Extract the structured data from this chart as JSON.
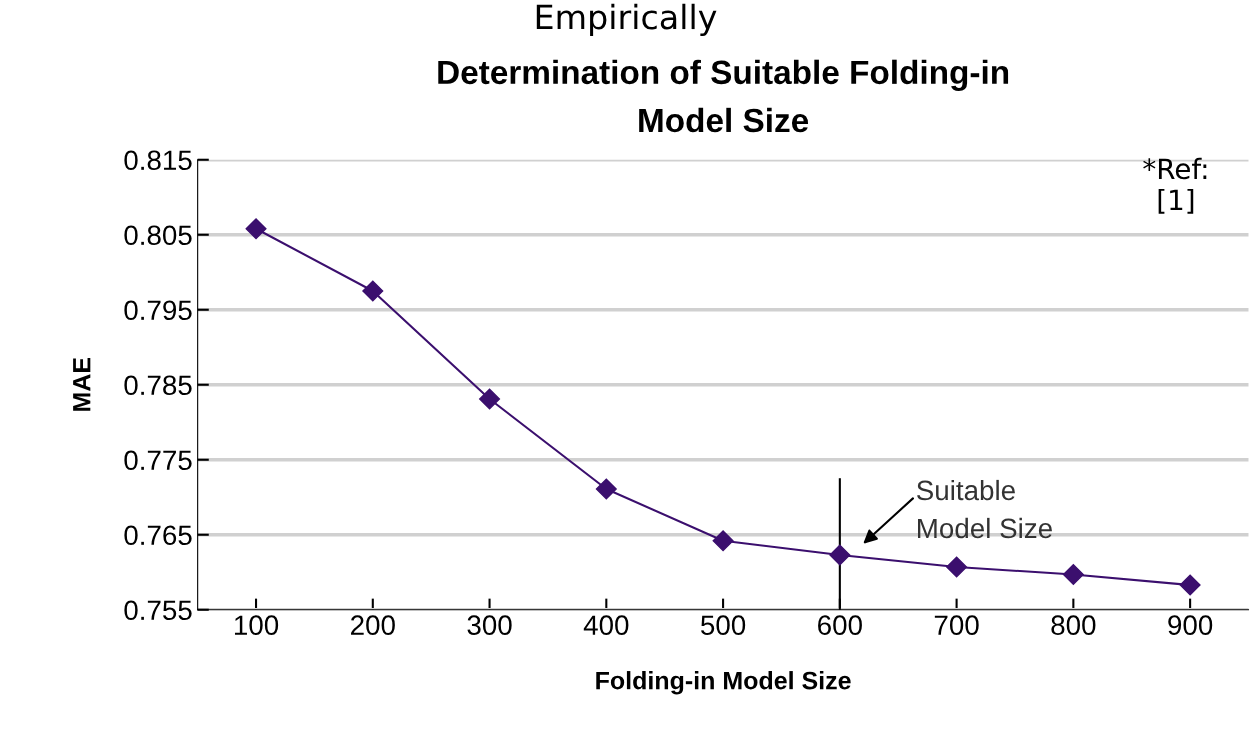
{
  "chart_data": {
    "type": "line",
    "title": "Determination of Suitable Folding-in\nModel Size",
    "xlabel": "Folding-in Model Size",
    "ylabel": "MAE",
    "categories": [
      "100",
      "200",
      "300",
      "400",
      "500",
      "600",
      "700",
      "800",
      "900"
    ],
    "series": [
      {
        "color": "#3b0f6e",
        "values": [
          0.8058,
          0.7975,
          0.7831,
          0.7711,
          0.7642,
          0.7623,
          0.7607,
          0.7597,
          0.7583
        ]
      }
    ],
    "ylim": [
      0.755,
      0.815
    ],
    "yticks": [
      0.755,
      0.765,
      0.775,
      0.785,
      0.795,
      0.805,
      0.815
    ],
    "grid": "y",
    "marker": "diamond",
    "ref_lines": [
      {
        "axis": "x",
        "value": "600",
        "color": "#000000"
      }
    ],
    "annotations": [
      "Empirically",
      {
        "text": "Suitable\nModel Size",
        "x": "600",
        "y": 0.7623
      },
      "*Ref:\n[1]"
    ]
  }
}
